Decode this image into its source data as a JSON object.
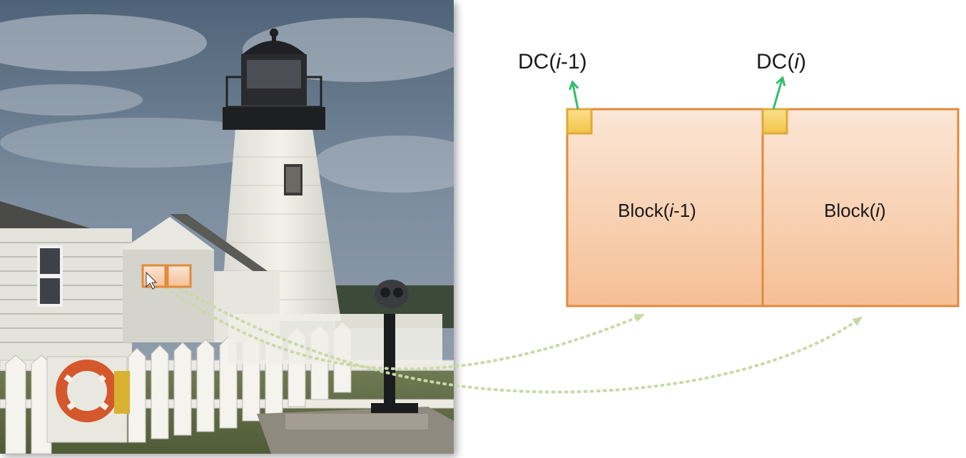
{
  "diagram": {
    "labels": {
      "dc_prev": {
        "prefix": "DC(",
        "var": "i",
        "suffix": "-1)"
      },
      "dc_curr": {
        "prefix": "DC(",
        "var": "i",
        "suffix": ")"
      },
      "block_prev": {
        "prefix": "Block(",
        "var": "i",
        "suffix": "-1)"
      },
      "block_curr": {
        "prefix": "Block(",
        "var": "i",
        "suffix": ")"
      }
    },
    "colors": {
      "block_fill_top": "#fbe6d6",
      "block_fill_bottom": "#f5bf95",
      "block_border": "#e08a3c",
      "dc_fill": "#f7d26a",
      "dc_border": "#e0a93a",
      "arrow_green": "#2fbf6a",
      "dotted_connector": "#c9d9a6"
    },
    "photo_icons": [
      "lighthouse",
      "house",
      "picket-fence",
      "life-ring",
      "coin-binoculars"
    ]
  }
}
